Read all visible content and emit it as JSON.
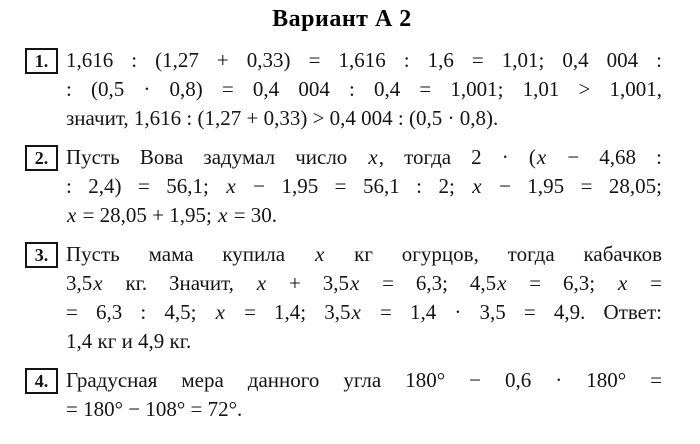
{
  "page": {
    "title": "Вариант А 2"
  },
  "problems": [
    {
      "number": "1.",
      "lines": [
        {
          "segments": [
            {
              "t": "1,616 : (1,27 + 0,33) = 1,616 : 1,6 = 1,01; 0,4 004 :"
            }
          ]
        },
        {
          "segments": [
            {
              "t": ": (0,5 · 0,8) = 0,4 004 : 0,4 = 1,001; 1,01 > 1,001,"
            }
          ]
        },
        {
          "segments": [
            {
              "t": "значит, 1,616 : (1,27 + 0,33) > 0,4 004 : (0,5 · 0,8)."
            }
          ]
        }
      ]
    },
    {
      "number": "2.",
      "lines": [
        {
          "segments": [
            {
              "t": "Пусть Вова задумал число "
            },
            {
              "t": "x",
              "italic": true
            },
            {
              "t": ", тогда 2 · ("
            },
            {
              "t": "x",
              "italic": true
            },
            {
              "t": " − 4,68 :"
            }
          ]
        },
        {
          "segments": [
            {
              "t": ": 2,4) = 56,1; "
            },
            {
              "t": "x",
              "italic": true
            },
            {
              "t": " − 1,95 = 56,1 : 2; "
            },
            {
              "t": "x",
              "italic": true
            },
            {
              "t": " − 1,95 = 28,05;"
            }
          ]
        },
        {
          "segments": [
            {
              "t": "x",
              "italic": true
            },
            {
              "t": " = 28,05 + 1,95; "
            },
            {
              "t": "x",
              "italic": true
            },
            {
              "t": " = 30."
            }
          ]
        }
      ]
    },
    {
      "number": "3.",
      "lines": [
        {
          "segments": [
            {
              "t": "Пусть мама купила "
            },
            {
              "t": "x",
              "italic": true
            },
            {
              "t": " кг огурцов, тогда кабачков"
            }
          ]
        },
        {
          "segments": [
            {
              "t": "3,5"
            },
            {
              "t": "x",
              "italic": true
            },
            {
              "t": " кг. Значит, "
            },
            {
              "t": "x",
              "italic": true
            },
            {
              "t": " + 3,5"
            },
            {
              "t": "x",
              "italic": true
            },
            {
              "t": " = 6,3; 4,5"
            },
            {
              "t": "x",
              "italic": true
            },
            {
              "t": " = 6,3; "
            },
            {
              "t": "x",
              "italic": true
            },
            {
              "t": " ="
            }
          ]
        },
        {
          "segments": [
            {
              "t": "= 6,3 : 4,5; "
            },
            {
              "t": "x",
              "italic": true
            },
            {
              "t": " = 1,4; 3,5"
            },
            {
              "t": "x",
              "italic": true
            },
            {
              "t": " = 1,4 · 3,5 = 4,9. Ответ:"
            }
          ]
        },
        {
          "segments": [
            {
              "t": "1,4 кг и 4,9 кг."
            }
          ]
        }
      ]
    },
    {
      "number": "4.",
      "lines": [
        {
          "segments": [
            {
              "t": "Градусная мера данного угла 180° − 0,6 · 180° ="
            }
          ]
        },
        {
          "segments": [
            {
              "t": "= 180° − 108° = 72°."
            }
          ]
        }
      ]
    }
  ]
}
